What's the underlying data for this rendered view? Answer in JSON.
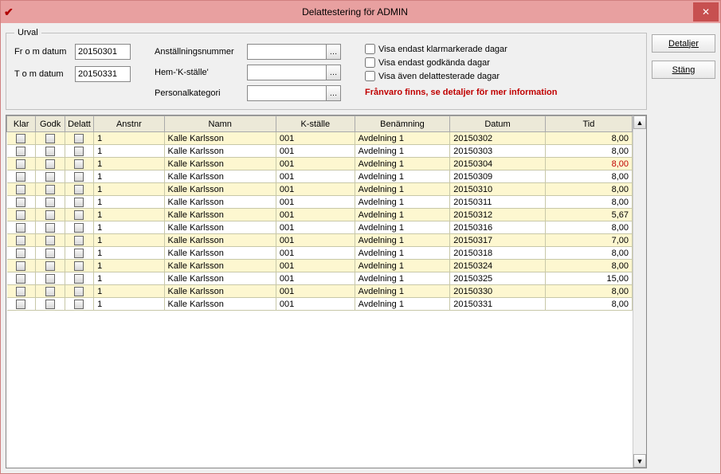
{
  "window": {
    "title": "Delattestering för ADMIN"
  },
  "buttons": {
    "detaljer": "Detaljer",
    "stang": "Stäng"
  },
  "urval": {
    "legend": "Urval",
    "from_label": "Fr o m datum",
    "from_value": "20150301",
    "tom_label": "T o m datum",
    "tom_value": "20150331",
    "anst_label": "Anställningsnummer",
    "anst_value": "",
    "hemk_label": "Hem-'K-ställe'",
    "hemk_value": "",
    "pkat_label": "Personalkategori",
    "pkat_value": "",
    "chk_klar": "Visa endast klarmarkerade dagar",
    "chk_godk": "Visa endast godkända dagar",
    "chk_delatt": "Visa även delattesterade dagar",
    "warning": "Frånvaro finns, se detaljer för mer information"
  },
  "table": {
    "headers": {
      "klar": "Klar",
      "godk": "Godk",
      "delatt": "Delatt",
      "anstnr": "Anstnr",
      "namn": "Namn",
      "kstalle": "K-ställe",
      "benamning": "Benämning",
      "datum": "Datum",
      "tid": "Tid"
    },
    "col_widths": {
      "klar": 35,
      "godk": 35,
      "delatt": 35,
      "anstnr": 85,
      "namn": 135,
      "kstalle": 95,
      "benamning": 115,
      "datum": 115,
      "tid": 105
    },
    "rows": [
      {
        "anstnr": "1",
        "namn": "Kalle Karlsson",
        "kstalle": "001",
        "benamning": "Avdelning 1",
        "datum": "20150302",
        "tid": "8,00",
        "tid_red": false
      },
      {
        "anstnr": "1",
        "namn": "Kalle Karlsson",
        "kstalle": "001",
        "benamning": "Avdelning 1",
        "datum": "20150303",
        "tid": "8,00",
        "tid_red": false
      },
      {
        "anstnr": "1",
        "namn": "Kalle Karlsson",
        "kstalle": "001",
        "benamning": "Avdelning 1",
        "datum": "20150304",
        "tid": "8,00",
        "tid_red": true
      },
      {
        "anstnr": "1",
        "namn": "Kalle Karlsson",
        "kstalle": "001",
        "benamning": "Avdelning 1",
        "datum": "20150309",
        "tid": "8,00",
        "tid_red": false
      },
      {
        "anstnr": "1",
        "namn": "Kalle Karlsson",
        "kstalle": "001",
        "benamning": "Avdelning 1",
        "datum": "20150310",
        "tid": "8,00",
        "tid_red": false
      },
      {
        "anstnr": "1",
        "namn": "Kalle Karlsson",
        "kstalle": "001",
        "benamning": "Avdelning 1",
        "datum": "20150311",
        "tid": "8,00",
        "tid_red": false
      },
      {
        "anstnr": "1",
        "namn": "Kalle Karlsson",
        "kstalle": "001",
        "benamning": "Avdelning 1",
        "datum": "20150312",
        "tid": "5,67",
        "tid_red": false
      },
      {
        "anstnr": "1",
        "namn": "Kalle Karlsson",
        "kstalle": "001",
        "benamning": "Avdelning 1",
        "datum": "20150316",
        "tid": "8,00",
        "tid_red": false
      },
      {
        "anstnr": "1",
        "namn": "Kalle Karlsson",
        "kstalle": "001",
        "benamning": "Avdelning 1",
        "datum": "20150317",
        "tid": "7,00",
        "tid_red": false
      },
      {
        "anstnr": "1",
        "namn": "Kalle Karlsson",
        "kstalle": "001",
        "benamning": "Avdelning 1",
        "datum": "20150318",
        "tid": "8,00",
        "tid_red": false
      },
      {
        "anstnr": "1",
        "namn": "Kalle Karlsson",
        "kstalle": "001",
        "benamning": "Avdelning 1",
        "datum": "20150324",
        "tid": "8,00",
        "tid_red": false
      },
      {
        "anstnr": "1",
        "namn": "Kalle Karlsson",
        "kstalle": "001",
        "benamning": "Avdelning 1",
        "datum": "20150325",
        "tid": "15,00",
        "tid_red": false
      },
      {
        "anstnr": "1",
        "namn": "Kalle Karlsson",
        "kstalle": "001",
        "benamning": "Avdelning 1",
        "datum": "20150330",
        "tid": "8,00",
        "tid_red": false
      },
      {
        "anstnr": "1",
        "namn": "Kalle Karlsson",
        "kstalle": "001",
        "benamning": "Avdelning 1",
        "datum": "20150331",
        "tid": "8,00",
        "tid_red": false
      }
    ]
  }
}
